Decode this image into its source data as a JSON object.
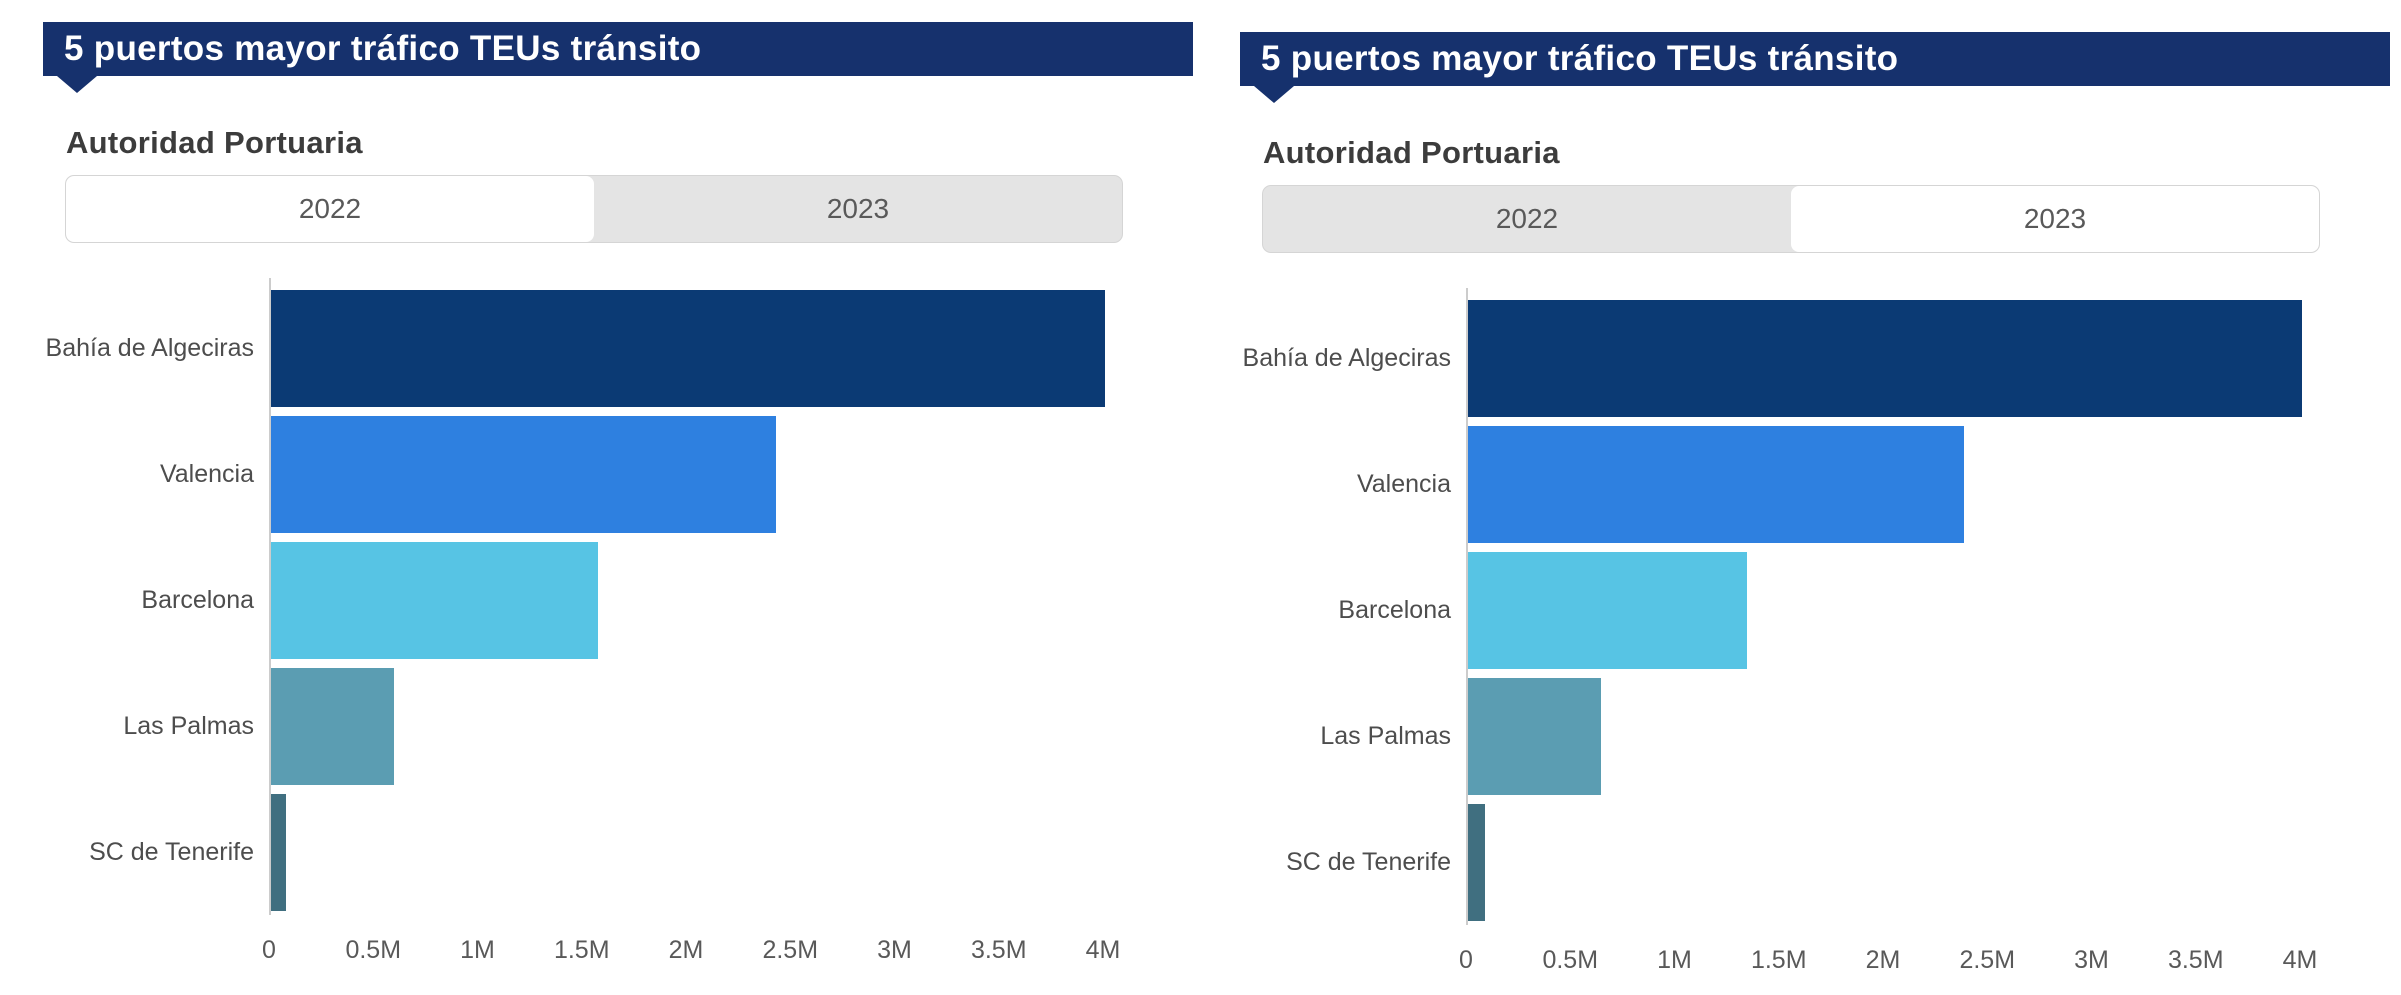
{
  "colors": {
    "banner_bg": "#16316d",
    "tab_bg": "#e4e4e4",
    "tab_border": "#d5d5d5",
    "tab_selected_bg": "#ffffff",
    "tab_text": "#595959",
    "subtitle_text": "#3c3c3c",
    "category_text": "#4d4d4d",
    "tick_text": "#595959",
    "axis_line": "#cccccc"
  },
  "chart_data": [
    {
      "type": "bar",
      "orientation": "horizontal",
      "title": "5 puertos mayor tráfico TEUs tránsito",
      "subtitle": "Autoridad Portuaria",
      "selected_year": "2022",
      "tabs": [
        {
          "label": "2022",
          "selected": true
        },
        {
          "label": "2023",
          "selected": false
        }
      ],
      "categories": [
        "Bahía de Algeciras",
        "Valencia",
        "Barcelona",
        "Las Palmas",
        "SC de Tenerife"
      ],
      "values_m": [
        4.0,
        2.42,
        1.57,
        0.59,
        0.07
      ],
      "unit": "TEUs",
      "bar_colors": [
        "#0b3a74",
        "#2e80e0",
        "#57c4e4",
        "#5b9db2",
        "#406f80"
      ],
      "x_ticks": [
        "0",
        "0.5M",
        "1M",
        "1.5M",
        "2M",
        "2.5M",
        "3M",
        "3.5M",
        "4M"
      ],
      "x_tick_values_m": [
        0,
        0.5,
        1,
        1.5,
        2,
        2.5,
        3,
        3.5,
        4
      ],
      "xlim_m": [
        0,
        4.2
      ],
      "xlabel": "",
      "ylabel": "Autoridad Portuaria",
      "grid": false,
      "legend": "none"
    },
    {
      "type": "bar",
      "orientation": "horizontal",
      "title": "5 puertos mayor tráfico TEUs tránsito",
      "subtitle": "Autoridad Portuaria",
      "selected_year": "2023",
      "tabs": [
        {
          "label": "2022",
          "selected": false
        },
        {
          "label": "2023",
          "selected": true
        }
      ],
      "categories": [
        "Bahía de Algeciras",
        "Valencia",
        "Barcelona",
        "Las Palmas",
        "SC de Tenerife"
      ],
      "values_m": [
        4.0,
        2.38,
        1.34,
        0.64,
        0.08
      ],
      "unit": "TEUs",
      "bar_colors": [
        "#0b3a74",
        "#2e80e0",
        "#57c4e4",
        "#5b9db2",
        "#406f80"
      ],
      "x_ticks": [
        "0",
        "0.5M",
        "1M",
        "1.5M",
        "2M",
        "2.5M",
        "3M",
        "3.5M",
        "4M"
      ],
      "x_tick_values_m": [
        0,
        0.5,
        1,
        1.5,
        2,
        2.5,
        3,
        3.5,
        4
      ],
      "xlim_m": [
        0,
        4.2
      ],
      "xlabel": "",
      "ylabel": "Autoridad Portuaria",
      "grid": false,
      "legend": "none"
    }
  ]
}
